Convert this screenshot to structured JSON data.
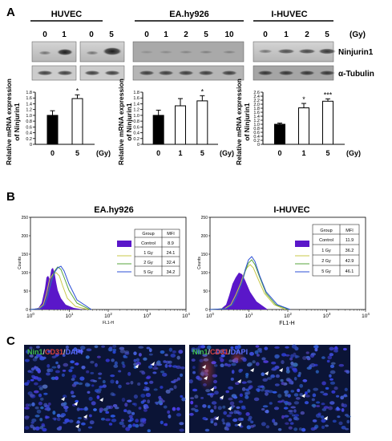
{
  "panel_a": {
    "label": "A",
    "dose_unit": "(Gy)",
    "cell_lines": [
      "HUVEC",
      "EA.hy926",
      "I-HUVEC"
    ],
    "blot_lanes": {
      "huvec_left": [
        "0",
        "1"
      ],
      "huvec_right": [
        "0",
        "5"
      ],
      "eahy926": [
        "0",
        "1",
        "2",
        "5",
        "10"
      ],
      "ihuvec": [
        "0",
        "1",
        "2",
        "5"
      ]
    },
    "proteins": [
      "Ninjurin1",
      "α-Tubulin"
    ],
    "ylabel_line1": "Relative mRNA expression",
    "ylabel_line2": "of Ninjurin1"
  },
  "panel_b": {
    "label": "B",
    "ylabel": "Counts",
    "left": {
      "title": "EA.hy926",
      "xlabel": "FL1-H",
      "table_header": [
        "Group",
        "MFI"
      ],
      "table_rows": [
        [
          "Control",
          "8.9"
        ],
        [
          "1 Gy",
          "24.1"
        ],
        [
          "2 Gy",
          "32.4"
        ],
        [
          "5 Gy",
          "34.2"
        ]
      ]
    },
    "right": {
      "title": "I-HUVEC",
      "xlabel": "FL1-H",
      "table_header": [
        "Group",
        "MFI"
      ],
      "table_rows": [
        [
          "Control",
          "11.9"
        ],
        [
          "1 Gy",
          "36.2"
        ],
        [
          "2 Gy",
          "42.9"
        ],
        [
          "5 Gy",
          "46.1"
        ]
      ]
    }
  },
  "panel_c": {
    "label": "C",
    "stain_nin": "Nin1",
    "stain_cd": "CD31",
    "stain_dapi": "DAPI"
  },
  "colors": {
    "control_fill": "#5a17c9",
    "gy1": "#c8c84a",
    "gy2": "#57a43b",
    "gy5": "#2b4fd6",
    "nin_green": "#3eb94a",
    "cd_red": "#d9403a",
    "dapi_blue": "#5a6cff",
    "tissue_bg": "#0b1436"
  },
  "chart_data": [
    {
      "type": "bar",
      "title": "HUVEC",
      "categories": [
        "0",
        "5"
      ],
      "values": [
        1.0,
        1.58
      ],
      "errors": [
        0.16,
        0.13
      ],
      "significance": [
        "",
        "*"
      ],
      "xlabel": "(Gy)",
      "ylabel": "Relative mRNA expression of Ninjurin1",
      "ylim": [
        0,
        1.8
      ],
      "yticks": [
        "0",
        "0.2",
        "0.4",
        "0.6",
        "0.8",
        "1.0",
        "1.2",
        "1.4",
        "1.6",
        "1.8"
      ]
    },
    {
      "type": "bar",
      "title": "EA.hy926",
      "categories": [
        "0",
        "1",
        "5"
      ],
      "values": [
        1.0,
        1.33,
        1.5
      ],
      "errors": [
        0.18,
        0.25,
        0.18
      ],
      "significance": [
        "",
        "",
        "*"
      ],
      "xlabel": "(Gy)",
      "ylabel": "Relative mRNA expression of Ninjurin1",
      "ylim": [
        0,
        1.8
      ],
      "yticks": [
        "0",
        "0.2",
        "0.4",
        "0.6",
        "0.8",
        "1.0",
        "1.2",
        "1.4",
        "1.6",
        "1.8"
      ]
    },
    {
      "type": "bar",
      "title": "I-HUVEC",
      "categories": [
        "0",
        "1",
        "5"
      ],
      "values": [
        1.0,
        1.82,
        2.15
      ],
      "errors": [
        0.06,
        0.22,
        0.12
      ],
      "significance": [
        "",
        "*",
        "***"
      ],
      "xlabel": "(Gy)",
      "ylabel": "Relative mRNA expression of Ninjurin1",
      "ylim": [
        0,
        2.6
      ],
      "yticks": [
        "0",
        "0.2",
        "0.4",
        "0.6",
        "0.8",
        "1.0",
        "1.2",
        "1.4",
        "1.6",
        "1.8",
        "2.0",
        "2.2",
        "2.4",
        "2.6"
      ]
    }
  ]
}
